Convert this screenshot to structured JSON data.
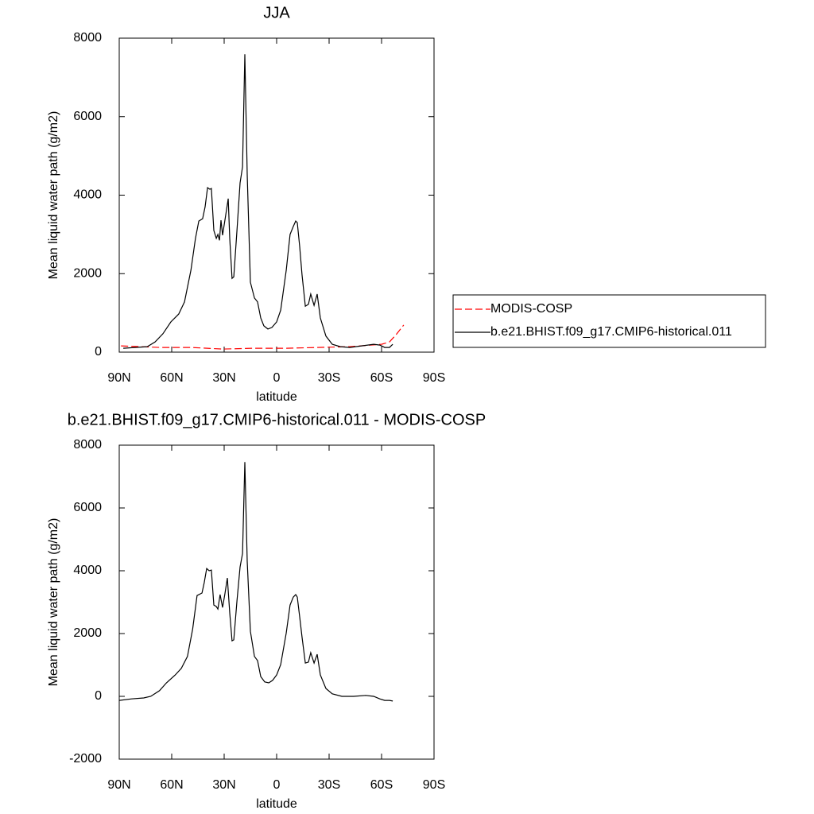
{
  "chart_data": [
    {
      "type": "line",
      "title": "JJA",
      "xlabel": "latitude",
      "ylabel": "Mean liquid water path (g/m2)",
      "xlim": [
        90,
        -90
      ],
      "xticks": [
        {
          "value": 90,
          "label": "90N"
        },
        {
          "value": 60,
          "label": "60N"
        },
        {
          "value": 30,
          "label": "30N"
        },
        0,
        {
          "value": -30,
          "label": "30S"
        },
        {
          "value": -60,
          "label": "60S"
        },
        {
          "value": -90,
          "label": "90S"
        }
      ],
      "ylim": [
        0,
        8000
      ],
      "yticks": [
        0,
        2000,
        4000,
        6000,
        8000
      ],
      "legend": "right",
      "series": [
        {
          "name": "MODIS-COSP",
          "color": "#ff0000",
          "dash": true,
          "x": [
            89,
            67,
            49,
            31,
            13,
            -5.5,
            -23.6,
            -42,
            -60,
            -64.5,
            -68,
            -72.7
          ],
          "values": [
            160,
            120,
            120,
            80,
            100,
            100,
            120,
            140,
            200,
            260,
            430,
            690
          ]
        },
        {
          "name": "b.e21.BHIST.f09_g17.CMIP6-historical.011",
          "color": "#000000",
          "dash": false,
          "x": [
            87.7,
            81,
            74,
            69.5,
            65,
            60.5,
            56,
            52.7,
            49,
            46.4,
            44.5,
            42.3,
            40.9,
            39.5,
            38.2,
            37.3,
            35.9,
            34.5,
            33.6,
            32.7,
            31.8,
            30.9,
            29.1,
            27.7,
            26.8,
            25.5,
            24.5,
            22.7,
            20.9,
            19.5,
            18.2,
            16.8,
            15,
            12.7,
            10.9,
            9.1,
            7.3,
            5,
            2.7,
            0,
            -2.3,
            -5.5,
            -7.7,
            -9.5,
            -10.9,
            -11.8,
            -13.2,
            -14.5,
            -16.4,
            -18.2,
            -19.5,
            -21.4,
            -23.2,
            -25,
            -28.2,
            -31.8,
            -36.4,
            -41.8,
            -48.6,
            -55.5,
            -59,
            -61.8,
            -64.5,
            -66.4
          ],
          "values": [
            100,
            120,
            140,
            260,
            470,
            770,
            970,
            1280,
            2090,
            2900,
            3340,
            3400,
            3700,
            4190,
            4150,
            4170,
            3100,
            2900,
            3000,
            2850,
            3360,
            2980,
            3500,
            3910,
            2900,
            1880,
            1920,
            3100,
            4310,
            4720,
            7590,
            4520,
            1780,
            1380,
            1280,
            870,
            670,
            590,
            630,
            770,
            1070,
            2090,
            3000,
            3200,
            3340,
            3300,
            2690,
            1980,
            1170,
            1220,
            1480,
            1190,
            1480,
            870,
            410,
            200,
            140,
            120,
            160,
            200,
            180,
            120,
            120,
            200
          ]
        }
      ]
    },
    {
      "type": "line",
      "title": "b.e21.BHIST.f09_g17.CMIP6-historical.011 - MODIS-COSP",
      "xlabel": "latitude",
      "ylabel": "Mean liquid water path (g/m2)",
      "xlim": [
        90,
        -90
      ],
      "xticks": [
        {
          "value": 90,
          "label": "90N"
        },
        {
          "value": 60,
          "label": "60N"
        },
        {
          "value": 30,
          "label": "30N"
        },
        0,
        {
          "value": -30,
          "label": "30S"
        },
        {
          "value": -60,
          "label": "60S"
        },
        {
          "value": -90,
          "label": "90S"
        }
      ],
      "ylim": [
        -2000,
        8000
      ],
      "yticks": [
        -2000,
        0,
        2000,
        4000,
        6000,
        8000
      ],
      "series": [
        {
          "color": "#000000",
          "dash": false,
          "x": [
            90,
            83,
            76,
            72,
            67,
            63,
            58,
            54.5,
            51,
            48,
            45.5,
            42.7,
            41.4,
            40,
            38.6,
            37.3,
            35.9,
            34.5,
            33.6,
            32.3,
            30.9,
            29.5,
            28.2,
            26.8,
            25.5,
            24.5,
            22.7,
            20.9,
            19.5,
            18.2,
            16.8,
            15,
            12.7,
            10.9,
            9.1,
            6.8,
            4.5,
            2.3,
            0,
            -2.3,
            -5.5,
            -7.7,
            -9.5,
            -10.9,
            -11.8,
            -13.2,
            -14.5,
            -16.4,
            -18.2,
            -19.5,
            -21.4,
            -23.2,
            -25,
            -28.2,
            -31.8,
            -37.3,
            -44,
            -51,
            -55.5,
            -59,
            -61.8,
            -64.5,
            -66.4
          ],
          "values": [
            -130,
            -80,
            -50,
            0,
            180,
            430,
            680,
            890,
            1270,
            2150,
            3210,
            3290,
            3620,
            4070,
            4000,
            4020,
            2910,
            2860,
            2780,
            3240,
            2830,
            3290,
            3770,
            2660,
            1770,
            1800,
            3040,
            4120,
            4550,
            7460,
            4300,
            2070,
            1270,
            1140,
            630,
            460,
            430,
            510,
            680,
            1010,
            2020,
            2910,
            3160,
            3240,
            3160,
            2530,
            1900,
            1060,
            1090,
            1390,
            1060,
            1340,
            680,
            250,
            80,
            0,
            0,
            30,
            0,
            -80,
            -130,
            -130,
            -150
          ]
        }
      ]
    }
  ]
}
